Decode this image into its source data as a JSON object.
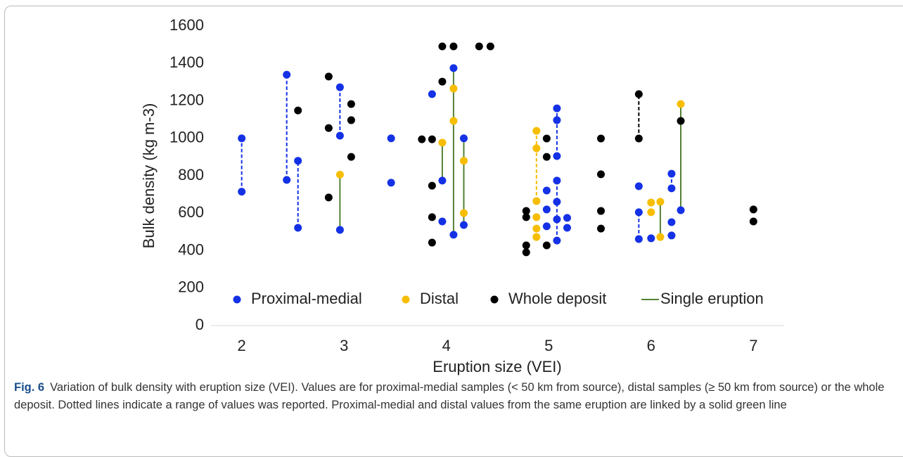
{
  "chart_data": {
    "type": "scatter",
    "xlabel": "Eruption size (VEI)",
    "ylabel": "Bulk density (kg m-3)",
    "xlim": [
      1.7,
      7.3
    ],
    "xticks": [
      2,
      3,
      4,
      5,
      6,
      7
    ],
    "ylim": [
      0,
      1600
    ],
    "yticks": [
      0,
      200,
      400,
      600,
      800,
      1000,
      1200,
      1400,
      1600
    ],
    "series": [
      {
        "name": "Proximal-medial",
        "color": "#1431e6",
        "x": [
          2.0,
          2.0,
          2.44,
          2.44,
          2.55,
          2.55,
          2.96,
          2.96,
          2.96,
          3.46,
          3.46,
          3.86,
          3.96,
          3.96,
          4.07,
          4.07,
          4.17,
          4.17,
          4.98,
          4.98,
          4.98,
          5.08,
          5.08,
          5.08,
          5.08,
          5.08,
          5.08,
          5.08,
          5.18,
          5.18,
          5.88,
          5.88,
          5.88,
          6.0,
          6.2,
          6.2,
          6.2,
          6.2,
          6.29
        ],
        "values": [
          1000,
          715,
          1340,
          778,
          880,
          522,
          1273,
          1014,
          511,
          1000,
          763,
          1236,
          774,
          556,
          1375,
          485,
          1000,
          537,
          721,
          620,
          530,
          1160,
          1097,
          905,
          774,
          661,
          567,
          454,
          575,
          522,
          744,
          605,
          462,
          466,
          811,
          733,
          552,
          481,
          616
        ]
      },
      {
        "name": "Distal",
        "color": "#f7bd00",
        "x": [
          2.96,
          3.96,
          4.07,
          4.07,
          4.17,
          4.17,
          4.88,
          4.88,
          4.88,
          4.88,
          4.88,
          4.88,
          6.0,
          6.0,
          6.09,
          6.09,
          6.29
        ],
        "values": [
          806,
          977,
          1266,
          1093,
          880,
          601,
          1040,
          947,
          665,
          579,
          518,
          473,
          657,
          605,
          661,
          473,
          1183
        ]
      },
      {
        "name": "Whole deposit",
        "color": "#000000",
        "x": [
          2.55,
          2.85,
          2.85,
          2.85,
          3.07,
          3.07,
          3.07,
          3.76,
          3.86,
          3.86,
          3.86,
          3.86,
          3.96,
          3.96,
          4.07,
          4.32,
          4.43,
          4.78,
          4.78,
          4.78,
          4.78,
          4.98,
          4.98,
          4.98,
          5.51,
          5.51,
          5.51,
          5.51,
          5.88,
          5.88,
          6.29,
          7.0,
          7.0
        ],
        "values": [
          1149,
          1330,
          1055,
          684,
          1183,
          1097,
          901,
          995,
          995,
          747,
          579,
          443,
          1303,
          1491,
          1491,
          1491,
          1491,
          612,
          579,
          428,
          391,
          999,
          901,
          428,
          999,
          808,
          612,
          518,
          1236,
          999,
          1093,
          620,
          556
        ]
      }
    ],
    "ranges": [
      {
        "x": 2.0,
        "low": 715,
        "high": 1000,
        "color": "#1431e6",
        "style": "dashed"
      },
      {
        "x": 2.44,
        "low": 778,
        "high": 1340,
        "color": "#1431e6",
        "style": "dashed"
      },
      {
        "x": 2.55,
        "low": 522,
        "high": 880,
        "color": "#1431e6",
        "style": "dashed"
      },
      {
        "x": 2.96,
        "low": 1014,
        "high": 1273,
        "color": "#1431e6",
        "style": "dashed"
      },
      {
        "x": 5.08,
        "low": 905,
        "high": 1160,
        "color": "#1431e6",
        "style": "dashed"
      },
      {
        "x": 5.08,
        "low": 454,
        "high": 774,
        "color": "#1431e6",
        "style": "dashed"
      },
      {
        "x": 5.88,
        "low": 462,
        "high": 605,
        "color": "#1431e6",
        "style": "dashed"
      },
      {
        "x": 6.2,
        "low": 733,
        "high": 811,
        "color": "#1431e6",
        "style": "dashed"
      },
      {
        "x": 4.88,
        "low": 665,
        "high": 1040,
        "color": "#f7bd00",
        "style": "dashed"
      },
      {
        "x": 5.88,
        "low": 999,
        "high": 1236,
        "color": "#000000",
        "style": "dashed"
      },
      {
        "x": 2.96,
        "low": 511,
        "high": 806,
        "color": "#548235",
        "style": "solid"
      },
      {
        "x": 3.96,
        "low": 774,
        "high": 977,
        "color": "#548235",
        "style": "solid"
      },
      {
        "x": 4.07,
        "low": 485,
        "high": 1375,
        "color": "#548235",
        "style": "solid"
      },
      {
        "x": 4.17,
        "low": 537,
        "high": 1000,
        "color": "#548235",
        "style": "solid"
      },
      {
        "x": 6.09,
        "low": 473,
        "high": 661,
        "color": "#548235",
        "style": "solid"
      },
      {
        "x": 6.29,
        "low": 616,
        "high": 1183,
        "color": "#548235",
        "style": "solid"
      }
    ],
    "line_legend": {
      "name": "Single eruption",
      "color": "#548235"
    },
    "caption": {
      "label": "Fig. 6",
      "text": "Variation of bulk density with eruption size (VEI). Values are for proximal-medial samples (< 50 km from source), distal samples (≥ 50 km from source) or the whole deposit. Dotted lines indicate a range of values was reported. Proximal-medial and distal values from the same eruption are linked by a solid green line"
    }
  }
}
